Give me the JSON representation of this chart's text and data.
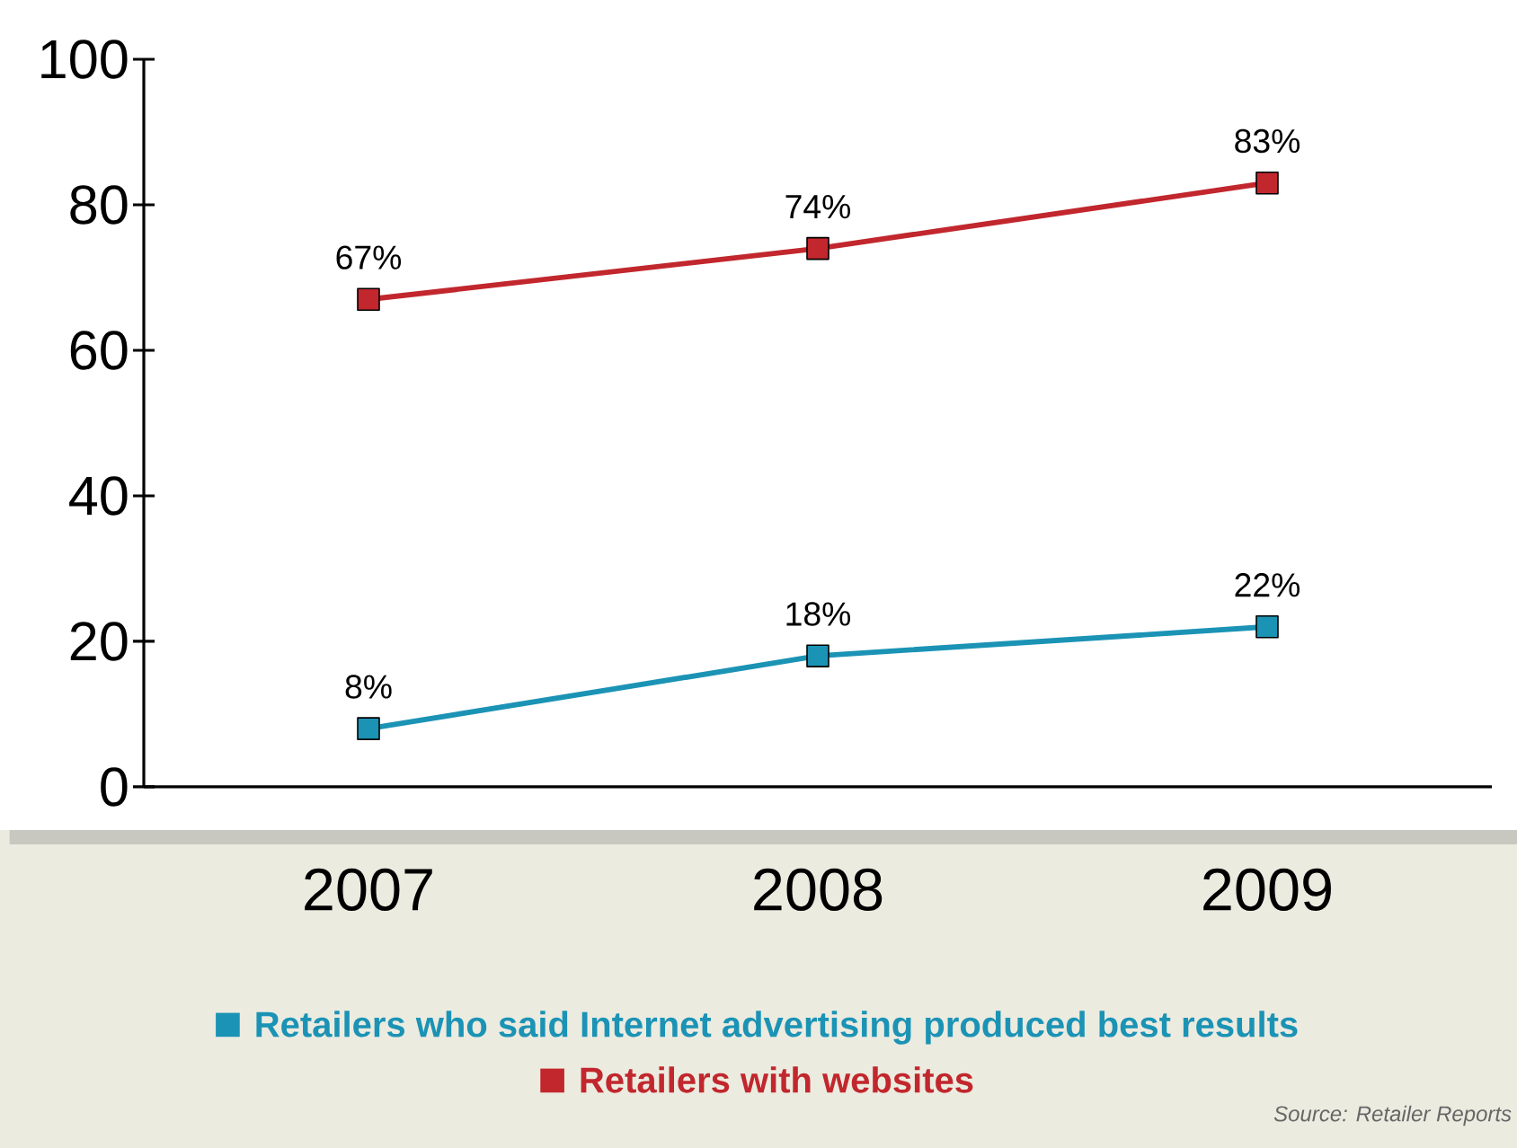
{
  "chart_data": {
    "type": "line",
    "categories": [
      "2007",
      "2008",
      "2009"
    ],
    "series": [
      {
        "name": "Retailers who said Internet advertising produced best results",
        "color": "#1b93b5",
        "values": [
          8,
          18,
          22
        ],
        "value_labels": [
          "8%",
          "18%",
          "22%"
        ]
      },
      {
        "name": "Retailers with websites",
        "color": "#c1272d",
        "values": [
          67,
          74,
          83
        ],
        "value_labels": [
          "67%",
          "74%",
          "83%"
        ]
      }
    ],
    "ylim": [
      0,
      100
    ],
    "yticks": [
      0,
      20,
      40,
      60,
      80,
      100
    ],
    "grid": false,
    "legend": "bottom",
    "marker": "square",
    "line_style": "solid",
    "annotations": [
      "Source: Retailer Reports"
    ]
  }
}
